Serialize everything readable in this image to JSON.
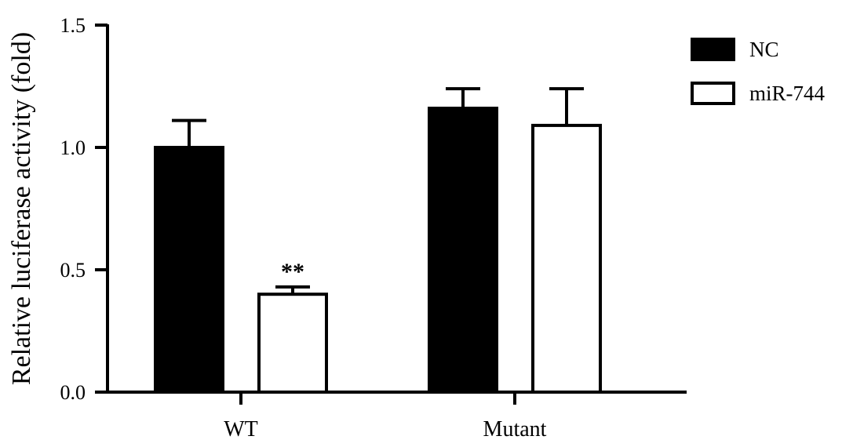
{
  "chart_data": {
    "type": "bar",
    "title": "",
    "xlabel": "",
    "ylabel": "Relative luciferase activity (fold)",
    "categories": [
      "WT",
      "Mutant"
    ],
    "ylim": [
      0,
      1.5
    ],
    "yticks": [
      0.0,
      0.5,
      1.0,
      1.5
    ],
    "ytick_labels": [
      "0.0",
      "0.5",
      "1.0",
      "1.5"
    ],
    "grid": false,
    "legend": "right",
    "series": [
      {
        "name": "NC",
        "color": "#000000",
        "fill": "#000000",
        "values": [
          1.0,
          1.16
        ],
        "errors": [
          0.11,
          0.08
        ],
        "annotations": [
          "",
          ""
        ]
      },
      {
        "name": "miR-744",
        "color": "#000000",
        "fill": "#ffffff",
        "values": [
          0.4,
          1.09
        ],
        "errors": [
          0.03,
          0.15
        ],
        "annotations": [
          "**",
          ""
        ]
      }
    ]
  }
}
